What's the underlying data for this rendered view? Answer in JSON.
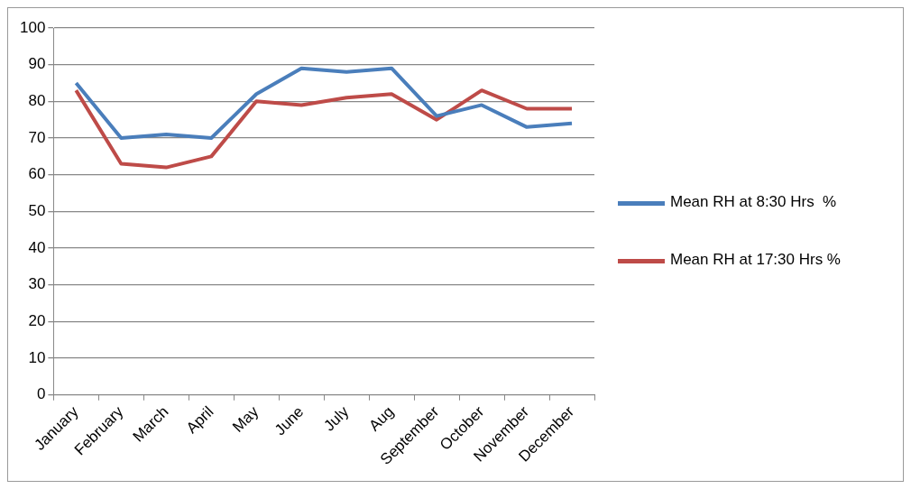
{
  "chart_data": {
    "type": "line",
    "categories": [
      "January",
      "February",
      "March",
      "April",
      "May",
      "June",
      "July",
      "Aug",
      "September",
      "October",
      "November",
      "December"
    ],
    "series": [
      {
        "name": "Mean RH at 8:30 Hrs  %",
        "color": "#4a7ebb",
        "values": [
          85,
          70,
          71,
          70,
          82,
          89,
          88,
          89,
          76,
          79,
          73,
          74
        ]
      },
      {
        "name": "Mean RH at 17:30 Hrs %",
        "color": "#be4b48",
        "values": [
          83,
          63,
          62,
          65,
          80,
          79,
          81,
          82,
          75,
          83,
          78,
          78
        ]
      }
    ],
    "ylim": [
      0,
      100
    ],
    "yticks": [
      0,
      10,
      20,
      30,
      40,
      50,
      60,
      70,
      80,
      90,
      100
    ],
    "grid": "y",
    "legend": "right",
    "marker": "none",
    "line_style": "solid"
  }
}
